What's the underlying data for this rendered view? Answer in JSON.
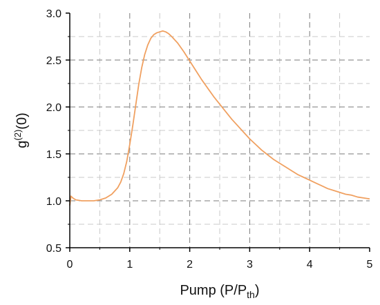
{
  "chart_data": {
    "type": "line",
    "title": "",
    "xlabel": "Pump (P/P",
    "xlabel_sub": "th",
    "xlabel_end": ")",
    "ylabel": "g",
    "ylabel_sup": "(2)",
    "ylabel_end": "(0)",
    "xlim": [
      0,
      5
    ],
    "ylim": [
      0.5,
      3.0
    ],
    "x_ticks": [
      0,
      1,
      2,
      3,
      4,
      5
    ],
    "x_tick_labels": [
      "0",
      "1",
      "2",
      "3",
      "4",
      "5"
    ],
    "y_ticks": [
      0.5,
      1.0,
      1.5,
      2.0,
      2.5,
      3.0
    ],
    "y_tick_labels": [
      "0.5",
      "1.0",
      "1.5",
      "2.0",
      "2.5",
      "3.0"
    ],
    "x_minor_ticks": [
      0.5,
      1.5,
      2.5,
      3.5,
      4.5
    ],
    "y_minor_ticks": [
      0.75,
      1.25,
      1.75,
      2.25,
      2.75
    ],
    "grid": true,
    "line_color": "#f0a060",
    "series": [
      {
        "x": [
          0,
          0.02,
          0.05,
          0.1,
          0.2,
          0.3,
          0.4,
          0.5,
          0.6,
          0.7,
          0.8,
          0.85,
          0.9,
          0.95,
          1.0,
          1.05,
          1.1,
          1.15,
          1.2,
          1.25,
          1.3,
          1.35,
          1.4,
          1.45,
          1.5,
          1.55,
          1.6,
          1.65,
          1.7,
          1.8,
          1.9,
          2.0,
          2.1,
          2.2,
          2.3,
          2.4,
          2.5,
          2.6,
          2.7,
          2.8,
          2.9,
          3.0,
          3.1,
          3.2,
          3.3,
          3.4,
          3.5,
          3.6,
          3.7,
          3.8,
          3.9,
          4.0,
          4.1,
          4.2,
          4.3,
          4.4,
          4.5,
          4.6,
          4.7,
          4.8,
          4.9,
          5.0
        ],
        "values": [
          0.95,
          1.05,
          1.03,
          1.01,
          1.0,
          1.0,
          1.0,
          1.01,
          1.03,
          1.07,
          1.14,
          1.2,
          1.29,
          1.42,
          1.6,
          1.8,
          2.02,
          2.24,
          2.42,
          2.56,
          2.66,
          2.73,
          2.77,
          2.79,
          2.8,
          2.81,
          2.8,
          2.78,
          2.75,
          2.68,
          2.59,
          2.49,
          2.39,
          2.29,
          2.2,
          2.11,
          2.03,
          1.95,
          1.87,
          1.8,
          1.73,
          1.66,
          1.6,
          1.54,
          1.49,
          1.44,
          1.4,
          1.36,
          1.32,
          1.28,
          1.25,
          1.22,
          1.19,
          1.16,
          1.13,
          1.11,
          1.09,
          1.07,
          1.06,
          1.04,
          1.03,
          1.02
        ]
      }
    ]
  }
}
